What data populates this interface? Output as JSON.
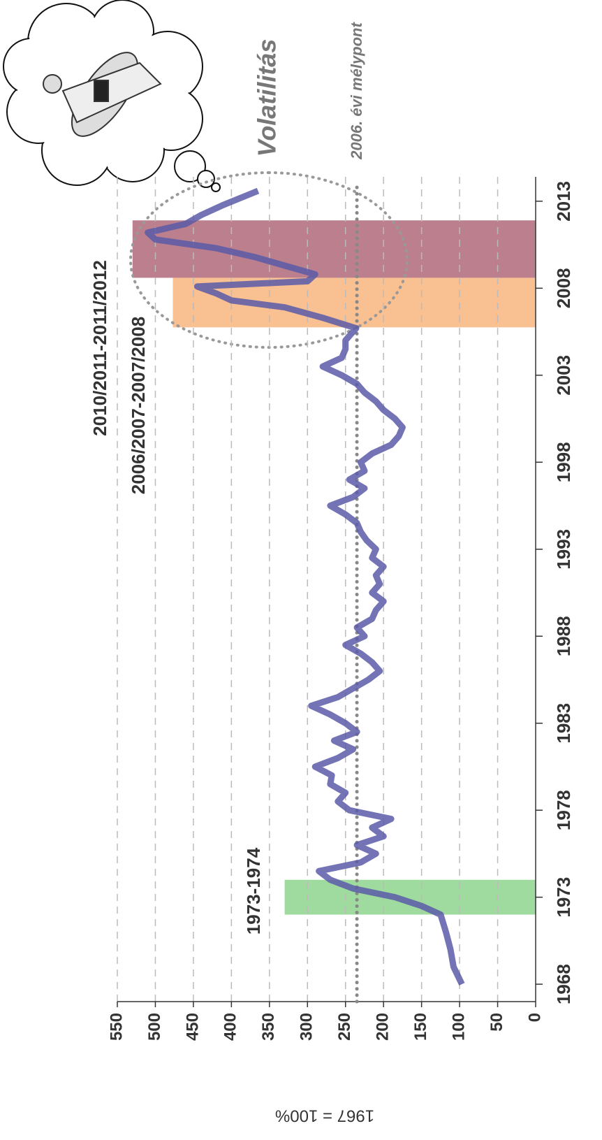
{
  "chart_data": {
    "type": "line",
    "x": [
      1968,
      1969,
      1970,
      1971,
      1972,
      1972.5,
      1973,
      1973.5,
      1974,
      1974.5,
      1975,
      1975.5,
      1976,
      1976.5,
      1977,
      1977.5,
      1978,
      1978.5,
      1979,
      1979.5,
      1980,
      1980.5,
      1981,
      1981.5,
      1982,
      1982.5,
      1983,
      1983.5,
      1984,
      1984.5,
      1985,
      1985.5,
      1986,
      1986.5,
      1987,
      1987.5,
      1988,
      1988.5,
      1989,
      1989.5,
      1990,
      1990.5,
      1991,
      1991.5,
      1992,
      1992.5,
      1993,
      1993.5,
      1994,
      1994.5,
      1995,
      1995.5,
      1996,
      1996.5,
      1997,
      1997.5,
      1998,
      1998.5,
      1999,
      1999.5,
      2000,
      2000.5,
      2001,
      2001.5,
      2002,
      2002.5,
      2003,
      2003.5,
      2004,
      2004.5,
      2005,
      2005.7,
      2006.3,
      2006.9,
      2007.3,
      2007.7,
      2008.1,
      2008.4,
      2008.8,
      2009.3,
      2009.8,
      2010.3,
      2010.8,
      2011.2,
      2011.7,
      2012.2,
      2012.8,
      2013.6
    ],
    "values": [
      97,
      108,
      112,
      118,
      125,
      150,
      185,
      240,
      270,
      285,
      230,
      210,
      235,
      200,
      215,
      190,
      245,
      260,
      250,
      270,
      268,
      290,
      260,
      240,
      265,
      235,
      250,
      270,
      295,
      260,
      240,
      220,
      205,
      215,
      230,
      250,
      225,
      235,
      215,
      210,
      200,
      215,
      205,
      210,
      200,
      215,
      210,
      222,
      230,
      235,
      250,
      270,
      240,
      225,
      245,
      225,
      230,
      215,
      190,
      180,
      175,
      185,
      200,
      210,
      225,
      235,
      255,
      280,
      255,
      250,
      250,
      236,
      280,
      330,
      400,
      420,
      445,
      300,
      290,
      330,
      370,
      420,
      500,
      510,
      460,
      440,
      410,
      365
    ],
    "color": "#5b5ba8",
    "xlim": [
      1967,
      2014
    ],
    "xticks": [
      1968,
      1973,
      1978,
      1983,
      1988,
      1993,
      1998,
      2003,
      2008,
      2013
    ],
    "ylim": [
      0,
      550
    ],
    "yticks": [
      0,
      50,
      100,
      150,
      200,
      250,
      300,
      350,
      400,
      450,
      500,
      550
    ],
    "ylabel": "1967 = 100%",
    "grid": true,
    "bands": [
      {
        "label": "1973-1974",
        "start": 1972,
        "end": 1974,
        "top": 330,
        "color": "#7fcf7f"
      },
      {
        "label": "2006/2007-2007/2008",
        "start": 2005.75,
        "end": 2008.6,
        "top": 477,
        "color": "#f7ab6e"
      },
      {
        "label": "2010/2011-2011/2012",
        "start": 2008.6,
        "end": 2011.9,
        "top": 530,
        "color": "#a65468"
      }
    ],
    "reference": {
      "value": 235,
      "label": "2006. évi mélypont"
    },
    "annotation": "Volatilitás"
  }
}
